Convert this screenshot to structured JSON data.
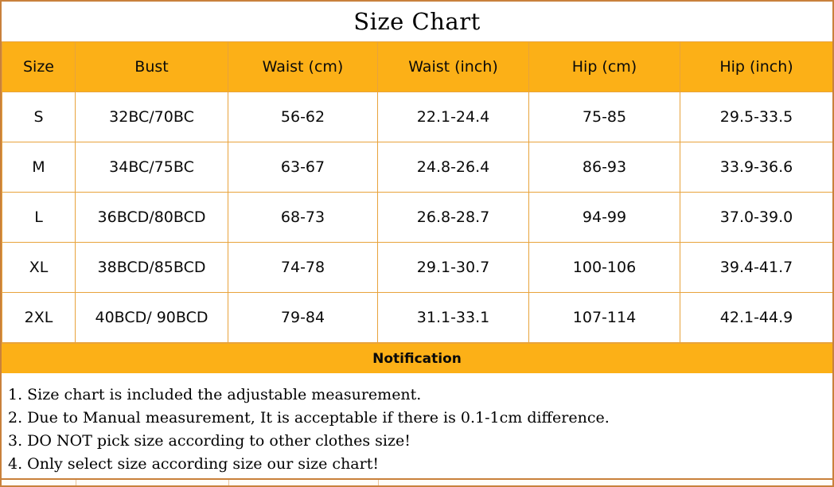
{
  "title": "Size Chart",
  "colors": {
    "header_bg": "#FCB017",
    "cell_border": "#E8A33C",
    "outer_border": "#C9813B",
    "text": "#0A0A0A"
  },
  "table": {
    "headers": [
      "Size",
      "Bust",
      "Waist (cm)",
      "Waist (inch)",
      "Hip (cm)",
      "Hip (inch)"
    ],
    "rows": [
      {
        "cells": [
          "S",
          "32BC/70BC",
          "56-62",
          "22.1-24.4",
          "75-85",
          "29.5-33.5"
        ]
      },
      {
        "cells": [
          "M",
          "34BC/75BC",
          "63-67",
          "24.8-26.4",
          "86-93",
          "33.9-36.6"
        ]
      },
      {
        "cells": [
          "L",
          "36BCD/80BCD",
          "68-73",
          "26.8-28.7",
          "94-99",
          "37.0-39.0"
        ]
      },
      {
        "cells": [
          "XL",
          "38BCD/85BCD",
          "74-78",
          "29.1-30.7",
          "100-106",
          "39.4-41.7"
        ]
      },
      {
        "cells": [
          "2XL",
          "40BCD/ 90BCD",
          "79-84",
          "31.1-33.1",
          "107-114",
          "42.1-44.9"
        ]
      }
    ]
  },
  "notification": {
    "label": "Notification"
  },
  "notes": [
    "1. Size chart is included the adjustable measurement.",
    "2. Due to Manual measurement, It is acceptable if there is 0.1-1cm difference.",
    "3. DO NOT pick size according to other clothes size!",
    "4. Only select size according size our size chart!"
  ]
}
